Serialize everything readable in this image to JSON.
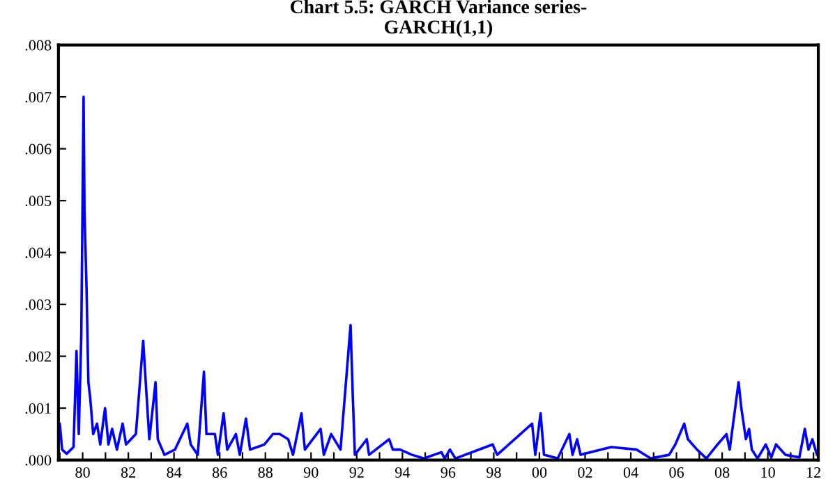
{
  "chart_data": {
    "type": "line",
    "title": "Chart 5.5: GARCH Variance series-\nGARCH(1,1)",
    "series": [
      {
        "color": "#0000ff",
        "x": [
          1978.94,
          1979.0,
          1979.1,
          1979.3,
          1979.6,
          1979.73,
          1979.83,
          1979.94,
          1980.04,
          1980.08,
          1980.17,
          1980.25,
          1980.33,
          1980.46,
          1980.63,
          1980.77,
          1980.98,
          1981.13,
          1981.29,
          1981.5,
          1981.75,
          1981.9,
          1982.33,
          1982.65,
          1982.79,
          1982.92,
          1983.19,
          1983.29,
          1983.58,
          1984.04,
          1984.58,
          1984.73,
          1985.04,
          1985.31,
          1985.42,
          1985.79,
          1985.92,
          1986.17,
          1986.33,
          1986.71,
          1986.88,
          1987.15,
          1987.33,
          1987.96,
          1988.33,
          1988.63,
          1989.0,
          1989.21,
          1989.58,
          1989.73,
          1990.42,
          1990.56,
          1990.88,
          1991.29,
          1991.73,
          1991.83,
          1991.92,
          1992.44,
          1992.54,
          1993.42,
          1993.58,
          1993.9,
          1994.42,
          1994.94,
          1995.71,
          1995.85,
          1996.08,
          1996.32,
          1997.95,
          1998.15,
          1999.68,
          1999.82,
          2000.05,
          2000.2,
          2000.8,
          2001.31,
          2001.45,
          2001.65,
          2001.8,
          2003.14,
          2004.26,
          2004.87,
          2005.68,
          2005.95,
          2006.34,
          2006.5,
          2006.9,
          2007.31,
          2007.8,
          2008.19,
          2008.33,
          2008.72,
          2008.84,
          2009.04,
          2009.18,
          2009.3,
          2009.55,
          2009.91,
          2010.15,
          2010.36,
          2010.77,
          2011.38,
          2011.62,
          2011.78,
          2011.95,
          2012.15
        ],
        "values": [
          0.0004,
          0.0007,
          0.0002,
          0.00012,
          0.00025,
          0.0021,
          0.0005,
          0.0024,
          0.007,
          0.0048,
          0.0033,
          0.0015,
          0.0012,
          0.0005,
          0.0007,
          0.0003,
          0.001,
          0.0003,
          0.0006,
          0.0002,
          0.0007,
          0.0003,
          0.0005,
          0.0023,
          0.0013,
          0.0004,
          0.0015,
          0.0004,
          0.0001,
          0.0002,
          0.0007,
          0.0003,
          0.0001,
          0.0017,
          0.0005,
          0.0005,
          0.0001,
          0.0009,
          0.0002,
          0.0005,
          0.0001,
          0.0008,
          0.0002,
          0.0003,
          0.0005,
          0.0005,
          0.0004,
          0.0001,
          0.0009,
          0.0002,
          0.0006,
          0.0001,
          0.0005,
          0.0002,
          0.0026,
          0.0012,
          0.0001,
          0.0004,
          0.0001,
          0.0004,
          0.0002,
          0.0002,
          0.0001,
          3e-05,
          0.00015,
          3e-05,
          0.0002,
          3e-05,
          0.0003,
          0.0001,
          0.0007,
          0.0001,
          0.0009,
          0.0001,
          3e-05,
          0.0005,
          0.0001,
          0.0004,
          0.0001,
          0.00025,
          0.0002,
          3e-05,
          0.0001,
          0.0003,
          0.0007,
          0.0004,
          0.0002,
          3e-05,
          0.0003,
          0.0005,
          0.0002,
          0.0015,
          0.001,
          0.0004,
          0.0006,
          0.0002,
          3e-05,
          0.0003,
          5e-05,
          0.0003,
          0.0001,
          5e-05,
          0.0006,
          0.0002,
          0.0004,
          0.0001
        ]
      }
    ],
    "xlim": [
      1978.94,
      2012.21
    ],
    "xticks": [
      {
        "value": 1979,
        "label": null
      },
      {
        "value": 1980,
        "label": "80"
      },
      {
        "value": 1981,
        "label": null
      },
      {
        "value": 1982,
        "label": "82"
      },
      {
        "value": 1983,
        "label": null
      },
      {
        "value": 1984,
        "label": "84"
      },
      {
        "value": 1985,
        "label": null
      },
      {
        "value": 1986,
        "label": "86"
      },
      {
        "value": 1987,
        "label": null
      },
      {
        "value": 1988,
        "label": "88"
      },
      {
        "value": 1989,
        "label": null
      },
      {
        "value": 1990,
        "label": "90"
      },
      {
        "value": 1991,
        "label": null
      },
      {
        "value": 1992,
        "label": "92"
      },
      {
        "value": 1993,
        "label": null
      },
      {
        "value": 1994,
        "label": "94"
      },
      {
        "value": 1995,
        "label": null
      },
      {
        "value": 1996,
        "label": "96"
      },
      {
        "value": 1997,
        "label": null
      },
      {
        "value": 1998,
        "label": "98"
      },
      {
        "value": 1999,
        "label": null
      },
      {
        "value": 2000,
        "label": "00"
      },
      {
        "value": 2001,
        "label": null
      },
      {
        "value": 2002,
        "label": "02"
      },
      {
        "value": 2003,
        "label": null
      },
      {
        "value": 2004,
        "label": "04"
      },
      {
        "value": 2005,
        "label": null
      },
      {
        "value": 2006,
        "label": "06"
      },
      {
        "value": 2007,
        "label": null
      },
      {
        "value": 2008,
        "label": "08"
      },
      {
        "value": 2009,
        "label": null
      },
      {
        "value": 2010,
        "label": "10"
      },
      {
        "value": 2011,
        "label": null
      },
      {
        "value": 2012,
        "label": "12"
      }
    ],
    "ylim": [
      0,
      0.008
    ],
    "yticks": [
      {
        "value": 0,
        "label": ".000"
      },
      {
        "value": 0.001,
        "label": ".001"
      },
      {
        "value": 0.002,
        "label": ".002"
      },
      {
        "value": 0.003,
        "label": ".003"
      },
      {
        "value": 0.004,
        "label": ".004"
      },
      {
        "value": 0.005,
        "label": ".005"
      },
      {
        "value": 0.006,
        "label": ".006"
      },
      {
        "value": 0.007,
        "label": ".007"
      },
      {
        "value": 0.008,
        "label": ".008"
      }
    ],
    "grid": false,
    "legend": false
  }
}
